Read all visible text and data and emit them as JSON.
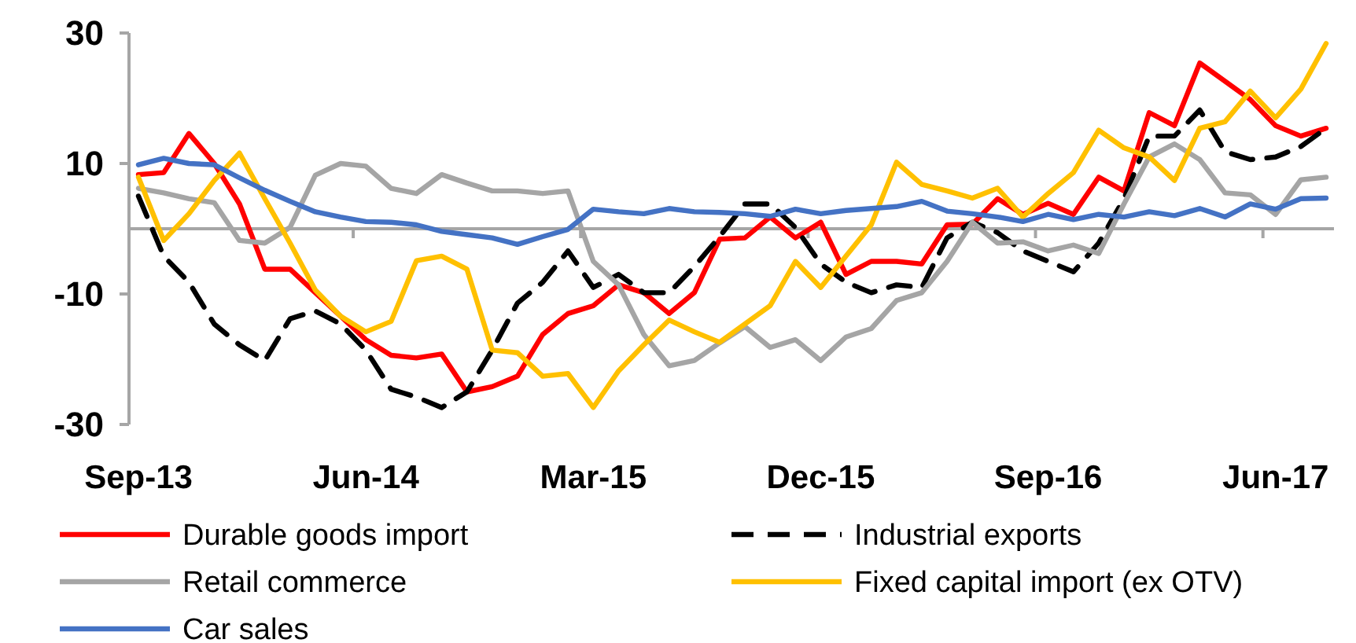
{
  "chart_data": {
    "type": "line",
    "categories": [
      "Sep-13",
      null,
      null,
      null,
      null,
      null,
      null,
      null,
      null,
      "Jun-14",
      null,
      null,
      null,
      null,
      null,
      null,
      null,
      null,
      "Mar-15",
      null,
      null,
      null,
      null,
      null,
      null,
      null,
      null,
      "Dec-15",
      null,
      null,
      null,
      null,
      null,
      null,
      null,
      null,
      "Sep-16",
      null,
      null,
      null,
      null,
      null,
      null,
      null,
      null,
      "Jun-17",
      null,
      null
    ],
    "ylim": [
      -30,
      30
    ],
    "yticks": [
      30,
      10,
      -10,
      -30
    ],
    "grid": false,
    "legend": "bottom",
    "series": [
      {
        "name": "Durable goods import",
        "color": "#ff0000",
        "line_style": "solid",
        "values": [
          8.3,
          8.6,
          14.6,
          10,
          3.8,
          -6.2,
          -6.2,
          -9.8,
          -13.4,
          -17,
          -19.4,
          -19.8,
          -19.2,
          -25,
          -24.2,
          -22.6,
          -16.2,
          -13,
          -11.8,
          -8.6,
          -9.8,
          -13,
          -9.8,
          -1.6,
          -1.4,
          1.8,
          -1.4,
          1,
          -7,
          -5,
          -5,
          -5.4,
          0.6,
          0.7,
          4.6,
          2.2,
          3.9,
          2.2,
          7.9,
          5.8,
          17.8,
          15.8,
          25.4,
          22.6,
          19.8,
          15.8,
          14.2,
          15.4
        ]
      },
      {
        "name": "Industrial exports",
        "color": "#000000",
        "line_style": "dashed",
        "values": [
          5,
          -4.2,
          -8.2,
          -14.6,
          -17.8,
          -20.2,
          -13.8,
          -12.6,
          -14.6,
          -18.6,
          -24.6,
          -25.8,
          -27.4,
          -25,
          -18.6,
          -11.4,
          -8.2,
          -3.4,
          -9,
          -7,
          -9.8,
          -9.8,
          -5.8,
          -1.2,
          3.8,
          3.8,
          0.2,
          -5.4,
          -8.2,
          -9.8,
          -8.6,
          -9,
          -1.4,
          1,
          -0.6,
          -3.4,
          -5,
          -6.6,
          -2.2,
          4.6,
          14.2,
          14.2,
          18.2,
          11.8,
          10.6,
          11,
          12.6,
          15.4
        ]
      },
      {
        "name": "Retail commerce",
        "color": "#a5a5a5",
        "line_style": "solid",
        "values": [
          6.2,
          5.5,
          4.6,
          4,
          -1.8,
          -2.2,
          0.2,
          8.2,
          10,
          9.6,
          6.2,
          5.4,
          8.3,
          7,
          5.8,
          5.8,
          5.4,
          5.8,
          -5,
          -8.6,
          -16.2,
          -21,
          -20.2,
          -17.5,
          -15,
          -18.2,
          -17,
          -20.2,
          -16.6,
          -15.3,
          -11,
          -9.8,
          -5,
          1,
          -2.2,
          -2,
          -3.4,
          -2.5,
          -3.8,
          3.8,
          11,
          13,
          10.6,
          5.5,
          5.2,
          2.2,
          7.5,
          7.9
        ]
      },
      {
        "name": "Fixed capital import (ex OTV)",
        "color": "#ffc000",
        "line_style": "solid",
        "values": [
          7.9,
          -1.8,
          2.3,
          7.4,
          11.6,
          4.6,
          -2.2,
          -9.4,
          -13.4,
          -15.8,
          -14.2,
          -4.9,
          -4.2,
          -6.2,
          -18.6,
          -19,
          -22.6,
          -22.2,
          -27.4,
          -21.8,
          -17.8,
          -14,
          -15.8,
          -17.4,
          -14.6,
          -11.8,
          -5,
          -9,
          -4.2,
          0.6,
          10.2,
          6.8,
          5.8,
          4.7,
          6.2,
          1.8,
          5.4,
          8.6,
          15.1,
          12.4,
          11,
          7.4,
          15.4,
          16.4,
          21.1,
          17,
          21.4,
          28.4
        ]
      },
      {
        "name": "Car sales",
        "color": "#4472c4",
        "line_style": "solid",
        "values": [
          9.8,
          10.8,
          10,
          9.8,
          7.8,
          5.9,
          4.2,
          2.6,
          1.8,
          1.1,
          1,
          0.6,
          -0.4,
          -0.9,
          -1.4,
          -2.4,
          -1.2,
          -0.1,
          3,
          2.6,
          2.3,
          3.1,
          2.6,
          2.5,
          2.3,
          1.9,
          3,
          2.3,
          2.8,
          3.1,
          3.4,
          4.2,
          2.7,
          2.3,
          1.8,
          1.1,
          2.2,
          1.4,
          2.2,
          1.8,
          2.6,
          2,
          3.1,
          1.8,
          3.8,
          3,
          4.6,
          4.7
        ]
      }
    ]
  }
}
